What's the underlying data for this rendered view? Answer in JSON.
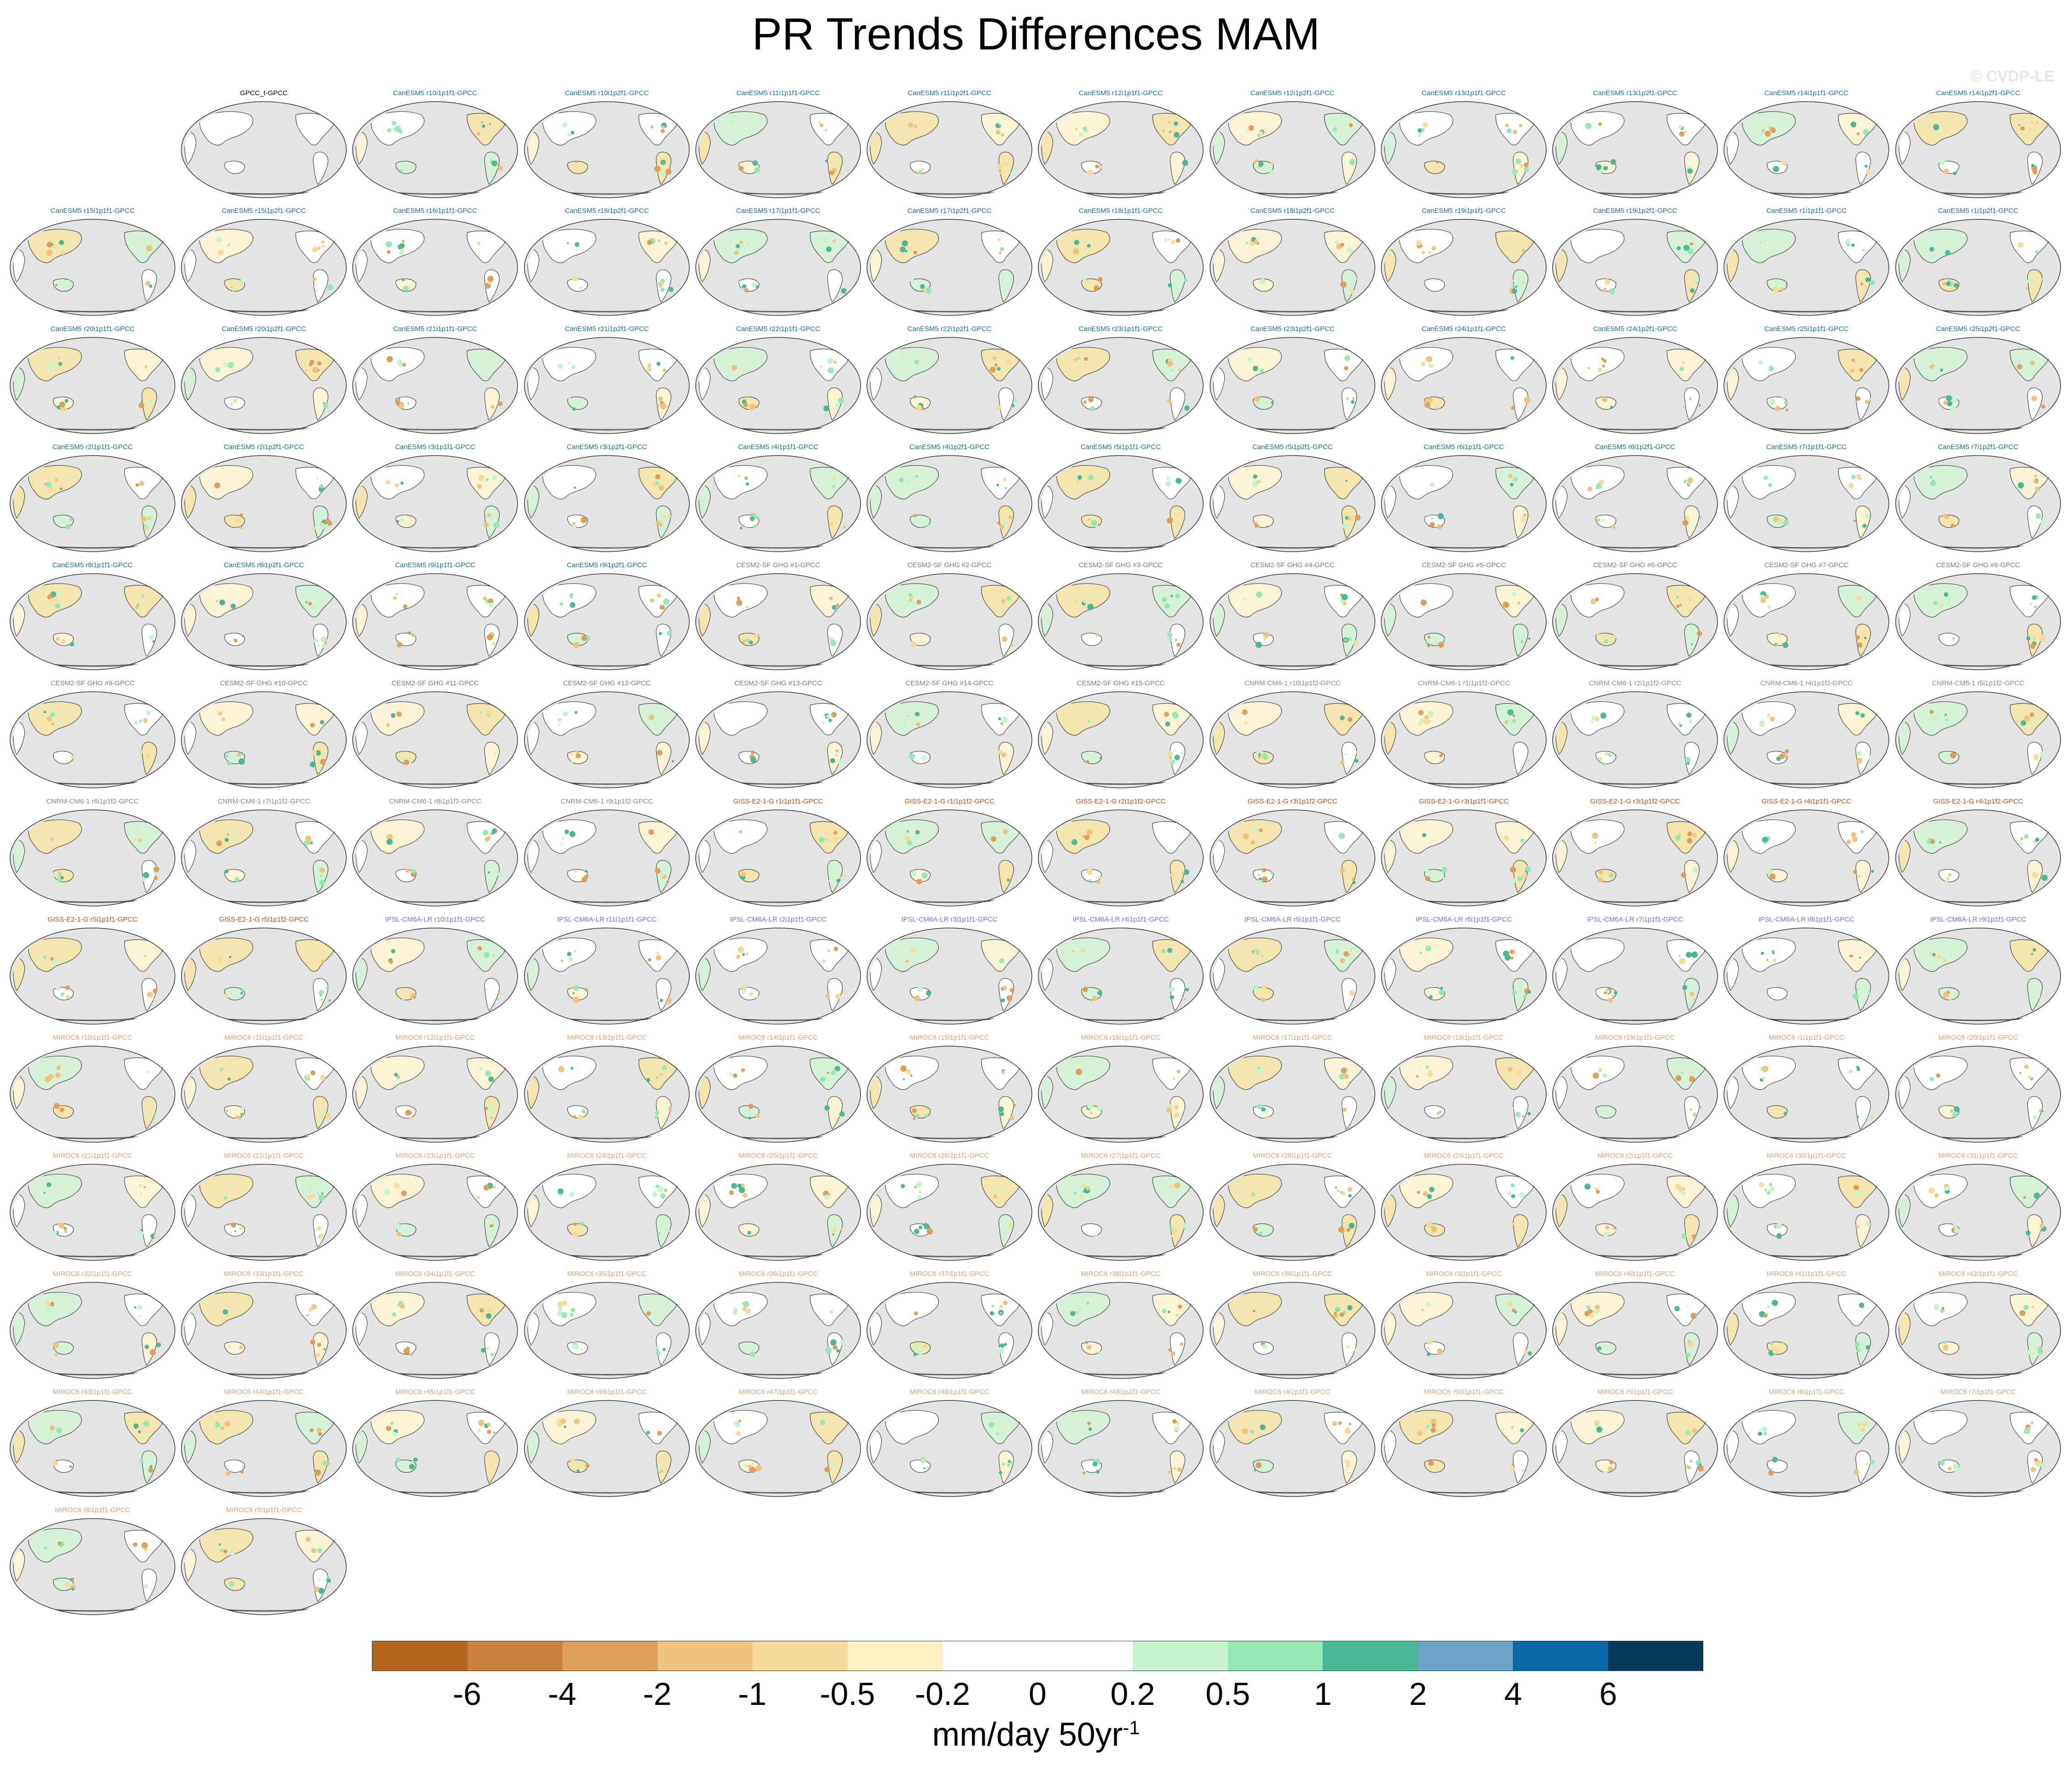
{
  "title": "PR Trends Differences MAM",
  "watermark": "© CVDP-LE",
  "colors": {
    "canesm5": "#1a6f9a",
    "cesm2": "#7a7a7a",
    "cnrm": "#8a8a8a",
    "giss": "#b5551e",
    "ipsl": "#7b6be0",
    "miroc6": "#e0a07a",
    "obs": "#000000",
    "ocean": "#e4e4e4",
    "coast": "#444444"
  },
  "panels": [
    {
      "label": "GPCC_t-GPCC",
      "group": "obs"
    },
    {
      "label": "CanESM5 r10i1p1f1-GPCC",
      "group": "canesm5"
    },
    {
      "label": "CanESM5 r10i1p2f1-GPCC",
      "group": "canesm5"
    },
    {
      "label": "CanESM5 r11i1p1f1-GPCC",
      "group": "canesm5"
    },
    {
      "label": "CanESM5 r11i1p2f1-GPCC",
      "group": "canesm5"
    },
    {
      "label": "CanESM5 r12i1p1f1-GPCC",
      "group": "canesm5"
    },
    {
      "label": "CanESM5 r12i1p2f1-GPCC",
      "group": "canesm5"
    },
    {
      "label": "CanESM5 r13i1p1f1-GPCC",
      "group": "canesm5"
    },
    {
      "label": "CanESM5 r13i1p2f1-GPCC",
      "group": "canesm5"
    },
    {
      "label": "CanESM5 r14i1p1f1-GPCC",
      "group": "canesm5"
    },
    {
      "label": "CanESM5 r14i1p2f1-GPCC",
      "group": "canesm5"
    },
    {
      "label": "CanESM5 r15i1p1f1-GPCC",
      "group": "canesm5"
    },
    {
      "label": "CanESM5 r15i1p2f1-GPCC",
      "group": "canesm5"
    },
    {
      "label": "CanESM5 r16i1p1f1-GPCC",
      "group": "canesm5"
    },
    {
      "label": "CanESM5 r16i1p2f1-GPCC",
      "group": "canesm5"
    },
    {
      "label": "CanESM5 r17i1p1f1-GPCC",
      "group": "canesm5"
    },
    {
      "label": "CanESM5 r17i1p2f1-GPCC",
      "group": "canesm5"
    },
    {
      "label": "CanESM5 r18i1p1f1-GPCC",
      "group": "canesm5"
    },
    {
      "label": "CanESM5 r18i1p2f1-GPCC",
      "group": "canesm5"
    },
    {
      "label": "CanESM5 r19i1p1f1-GPCC",
      "group": "canesm5"
    },
    {
      "label": "CanESM5 r19i1p2f1-GPCC",
      "group": "canesm5"
    },
    {
      "label": "CanESM5 r1i1p1f1-GPCC",
      "group": "canesm5"
    },
    {
      "label": "CanESM5 r1i1p2f1-GPCC",
      "group": "canesm5"
    },
    {
      "label": "CanESM5 r20i1p1f1-GPCC",
      "group": "canesm5"
    },
    {
      "label": "CanESM5 r20i1p2f1-GPCC",
      "group": "canesm5"
    },
    {
      "label": "CanESM5 r21i1p1f1-GPCC",
      "group": "canesm5"
    },
    {
      "label": "CanESM5 r21i1p2f1-GPCC",
      "group": "canesm5"
    },
    {
      "label": "CanESM5 r22i1p1f1-GPCC",
      "group": "canesm5"
    },
    {
      "label": "CanESM5 r22i1p2f1-GPCC",
      "group": "canesm5"
    },
    {
      "label": "CanESM5 r23i1p1f1-GPCC",
      "group": "canesm5"
    },
    {
      "label": "CanESM5 r23i1p2f1-GPCC",
      "group": "canesm5"
    },
    {
      "label": "CanESM5 r24i1p1f1-GPCC",
      "group": "canesm5"
    },
    {
      "label": "CanESM5 r24i1p2f1-GPCC",
      "group": "canesm5"
    },
    {
      "label": "CanESM5 r25i1p1f1-GPCC",
      "group": "canesm5"
    },
    {
      "label": "CanESM5 r25i1p2f1-GPCC",
      "group": "canesm5"
    },
    {
      "label": "CanESM5 r2i1p1f1-GPCC",
      "group": "canesm5"
    },
    {
      "label": "CanESM5 r2i1p2f1-GPCC",
      "group": "canesm5"
    },
    {
      "label": "CanESM5 r3i1p1f1-GPCC",
      "group": "canesm5"
    },
    {
      "label": "CanESM5 r3i1p2f1-GPCC",
      "group": "canesm5"
    },
    {
      "label": "CanESM5 r4i1p1f1-GPCC",
      "group": "canesm5"
    },
    {
      "label": "CanESM5 r4i1p2f1-GPCC",
      "group": "canesm5"
    },
    {
      "label": "CanESM5 r5i1p1f1-GPCC",
      "group": "canesm5"
    },
    {
      "label": "CanESM5 r5i1p2f1-GPCC",
      "group": "canesm5"
    },
    {
      "label": "CanESM5 r6i1p1f1-GPCC",
      "group": "canesm5"
    },
    {
      "label": "CanESM5 r6i1p2f1-GPCC",
      "group": "canesm5"
    },
    {
      "label": "CanESM5 r7i1p1f1-GPCC",
      "group": "canesm5"
    },
    {
      "label": "CanESM5 r7i1p2f1-GPCC",
      "group": "canesm5"
    },
    {
      "label": "CanESM5 r8i1p1f1-GPCC",
      "group": "canesm5"
    },
    {
      "label": "CanESM5 r8i1p2f1-GPCC",
      "group": "canesm5"
    },
    {
      "label": "CanESM5 r9i1p1f1-GPCC",
      "group": "canesm5"
    },
    {
      "label": "CanESM5 r9i1p2f1-GPCC",
      "group": "canesm5"
    },
    {
      "label": "CESM2-SF GHG #1-GPCC",
      "group": "cesm2"
    },
    {
      "label": "CESM2-SF GHG #2-GPCC",
      "group": "cesm2"
    },
    {
      "label": "CESM2-SF GHG #3-GPCC",
      "group": "cesm2"
    },
    {
      "label": "CESM2-SF GHG #4-GPCC",
      "group": "cesm2"
    },
    {
      "label": "CESM2-SF GHG #5-GPCC",
      "group": "cesm2"
    },
    {
      "label": "CESM2-SF GHG #6-GPCC",
      "group": "cesm2"
    },
    {
      "label": "CESM2-SF GHG #7-GPCC",
      "group": "cesm2"
    },
    {
      "label": "CESM2-SF GHG #8-GPCC",
      "group": "cesm2"
    },
    {
      "label": "CESM2-SF GHG #9-GPCC",
      "group": "cesm2"
    },
    {
      "label": "CESM2-SF GHG #10-GPCC",
      "group": "cesm2"
    },
    {
      "label": "CESM2-SF GHG #11-GPCC",
      "group": "cesm2"
    },
    {
      "label": "CESM2-SF GHG #12-GPCC",
      "group": "cesm2"
    },
    {
      "label": "CESM2-SF GHG #13-GPCC",
      "group": "cesm2"
    },
    {
      "label": "CESM2-SF GHG #14-GPCC",
      "group": "cesm2"
    },
    {
      "label": "CESM2-SF GHG #15-GPCC",
      "group": "cesm2"
    },
    {
      "label": "CNRM-CM6-1 r10i1p1f2-GPCC",
      "group": "cnrm"
    },
    {
      "label": "CNRM-CM6-1 r1i1p1f2-GPCC",
      "group": "cnrm"
    },
    {
      "label": "CNRM-CM6-1 r2i1p1f2-GPCC",
      "group": "cnrm"
    },
    {
      "label": "CNRM-CM6-1 r4i1p1f2-GPCC",
      "group": "cnrm"
    },
    {
      "label": "CNRM-CM6-1 r5i1p1f2-GPCC",
      "group": "cnrm"
    },
    {
      "label": "CNRM-CM6-1 r6i1p1f2-GPCC",
      "group": "cnrm"
    },
    {
      "label": "CNRM-CM6-1 r7i1p1f2-GPCC",
      "group": "cnrm"
    },
    {
      "label": "CNRM-CM6-1 r8i1p1f2-GPCC",
      "group": "cnrm"
    },
    {
      "label": "CNRM-CM6-1 r9i1p1f2-GPCC",
      "group": "cnrm"
    },
    {
      "label": "GISS-E2-1-G r1i1p1f1-GPCC",
      "group": "giss"
    },
    {
      "label": "GISS-E2-1-G r1i1p1f2-GPCC",
      "group": "giss"
    },
    {
      "label": "GISS-E2-1-G r2i1p1f2-GPCC",
      "group": "giss"
    },
    {
      "label": "GISS-E2-1-G r3i1p1f2-GPCC",
      "group": "giss"
    },
    {
      "label": "GISS-E2-1-G r3i1p1f1-GPCC",
      "group": "giss"
    },
    {
      "label": "GISS-E2-1-G r3i1p1f2-GPCC",
      "group": "giss"
    },
    {
      "label": "GISS-E2-1-G r4i1p1f1-GPCC",
      "group": "giss"
    },
    {
      "label": "GISS-E2-1-G r4i1p1f2-GPCC",
      "group": "giss"
    },
    {
      "label": "GISS-E2-1-G r5i1p1f1-GPCC",
      "group": "giss"
    },
    {
      "label": "GISS-E2-1-G r5i1p1f2-GPCC",
      "group": "giss"
    },
    {
      "label": "IPSL-CM6A-LR r10i1p1f1-GPCC",
      "group": "ipsl"
    },
    {
      "label": "IPSL-CM6A-LR r11i1p1f1-GPCC",
      "group": "ipsl"
    },
    {
      "label": "IPSL-CM6A-LR r2i1p1f1-GPCC",
      "group": "ipsl"
    },
    {
      "label": "IPSL-CM6A-LR r3i1p1f1-GPCC",
      "group": "ipsl"
    },
    {
      "label": "IPSL-CM6A-LR r4i1p1f1-GPCC",
      "group": "ipsl"
    },
    {
      "label": "IPSL-CM6A-LR r5i1p1f1-GPCC",
      "group": "ipsl"
    },
    {
      "label": "IPSL-CM6A-LR r6i1p1f1-GPCC",
      "group": "ipsl"
    },
    {
      "label": "IPSL-CM6A-LR r7i1p1f1-GPCC",
      "group": "ipsl"
    },
    {
      "label": "IPSL-CM6A-LR r8i1p1f1-GPCC",
      "group": "ipsl"
    },
    {
      "label": "IPSL-CM6A-LR r9i1p1f1-GPCC",
      "group": "ipsl"
    },
    {
      "label": "MIROC6 r10i1p1f1-GPCC",
      "group": "miroc6"
    },
    {
      "label": "MIROC6 r11i1p1f1-GPCC",
      "group": "miroc6"
    },
    {
      "label": "MIROC6 r12i1p1f1-GPCC",
      "group": "miroc6"
    },
    {
      "label": "MIROC6 r13i1p1f1-GPCC",
      "group": "miroc6"
    },
    {
      "label": "MIROC6 r14i1p1f1-GPCC",
      "group": "miroc6"
    },
    {
      "label": "MIROC6 r15i1p1f1-GPCC",
      "group": "miroc6"
    },
    {
      "label": "MIROC6 r16i1p1f1-GPCC",
      "group": "miroc6"
    },
    {
      "label": "MIROC6 r17i1p1f1-GPCC",
      "group": "miroc6"
    },
    {
      "label": "MIROC6 r18i1p1f1-GPCC",
      "group": "miroc6"
    },
    {
      "label": "MIROC6 r19i1p1f1-GPCC",
      "group": "miroc6"
    },
    {
      "label": "MIROC6 r1i1p1f1-GPCC",
      "group": "miroc6"
    },
    {
      "label": "MIROC6 r20i1p1f1-GPCC",
      "group": "miroc6"
    },
    {
      "label": "MIROC6 r21i1p1f1-GPCC",
      "group": "miroc6"
    },
    {
      "label": "MIROC6 r22i1p1f1-GPCC",
      "group": "miroc6"
    },
    {
      "label": "MIROC6 r23i1p1f1-GPCC",
      "group": "miroc6"
    },
    {
      "label": "MIROC6 r24i1p1f1-GPCC",
      "group": "miroc6"
    },
    {
      "label": "MIROC6 r25i1p1f1-GPCC",
      "group": "miroc6"
    },
    {
      "label": "MIROC6 r26i1p1f1-GPCC",
      "group": "miroc6"
    },
    {
      "label": "MIROC6 r27i1p1f1-GPCC",
      "group": "miroc6"
    },
    {
      "label": "MIROC6 r28i1p1f1-GPCC",
      "group": "miroc6"
    },
    {
      "label": "MIROC6 r29i1p1f1-GPCC",
      "group": "miroc6"
    },
    {
      "label": "MIROC6 r2i1p1f1-GPCC",
      "group": "miroc6"
    },
    {
      "label": "MIROC6 r30i1p1f1-GPCC",
      "group": "miroc6"
    },
    {
      "label": "MIROC6 r31i1p1f1-GPCC",
      "group": "miroc6"
    },
    {
      "label": "MIROC6 r32i1p1f1-GPCC",
      "group": "miroc6"
    },
    {
      "label": "MIROC6 r33i1p1f1-GPCC",
      "group": "miroc6"
    },
    {
      "label": "MIROC6 r34i1p1f1-GPCC",
      "group": "miroc6"
    },
    {
      "label": "MIROC6 r35i1p1f1-GPCC",
      "group": "miroc6"
    },
    {
      "label": "MIROC6 r36i1p1f1-GPCC",
      "group": "miroc6"
    },
    {
      "label": "MIROC6 r37i1p1f1-GPCC",
      "group": "miroc6"
    },
    {
      "label": "MIROC6 r38i1p1f1-GPCC",
      "group": "miroc6"
    },
    {
      "label": "MIROC6 r39i1p1f1-GPCC",
      "group": "miroc6"
    },
    {
      "label": "MIROC6 r3i1p1f1-GPCC",
      "group": "miroc6"
    },
    {
      "label": "MIROC6 r40i1p1f1-GPCC",
      "group": "miroc6"
    },
    {
      "label": "MIROC6 r41i1p1f1-GPCC",
      "group": "miroc6"
    },
    {
      "label": "MIROC6 r42i1p1f1-GPCC",
      "group": "miroc6"
    },
    {
      "label": "MIROC6 r43i1p1f1-GPCC",
      "group": "miroc6"
    },
    {
      "label": "MIROC6 r44i1p1f1-GPCC",
      "group": "miroc6"
    },
    {
      "label": "MIROC6 r45i1p1f1-GPCC",
      "group": "miroc6"
    },
    {
      "label": "MIROC6 r46i1p1f1-GPCC",
      "group": "miroc6"
    },
    {
      "label": "MIROC6 r47i1p1f1-GPCC",
      "group": "miroc6"
    },
    {
      "label": "MIROC6 r48i1p1f1-GPCC",
      "group": "miroc6"
    },
    {
      "label": "MIROC6 r49i1p1f1-GPCC",
      "group": "miroc6"
    },
    {
      "label": "MIROC6 r4i1p1f1-GPCC",
      "group": "miroc6"
    },
    {
      "label": "MIROC6 r50i1p1f1-GPCC",
      "group": "miroc6"
    },
    {
      "label": "MIROC6 r5i1p1f1-GPCC",
      "group": "miroc6"
    },
    {
      "label": "MIROC6 r6i1p1f1-GPCC",
      "group": "miroc6"
    },
    {
      "label": "MIROC6 r7i1p1f1-GPCC",
      "group": "miroc6"
    },
    {
      "label": "MIROC6 r8i1p1f1-GPCC",
      "group": "miroc6"
    },
    {
      "label": "MIROC6 r9i1p1f1-GPCC",
      "group": "miroc6"
    }
  ],
  "colorbar": {
    "colors": [
      "#b5651d",
      "#cc8040",
      "#de9f5c",
      "#f0c47e",
      "#f5dc9a",
      "#fdf1c4",
      "#ffffff",
      "#ffffff",
      "#c4f5cc",
      "#96e8b4",
      "#4db898",
      "#6aa5c7",
      "#0b69a8",
      "#063a5a"
    ],
    "ticks": [
      "-6",
      "-4",
      "-2",
      "-1",
      "-0.5",
      "-0.2",
      "0",
      "0.2",
      "0.5",
      "1",
      "2",
      "4",
      "6"
    ],
    "units": "mm/day 50yr",
    "units_sup": "-1"
  }
}
